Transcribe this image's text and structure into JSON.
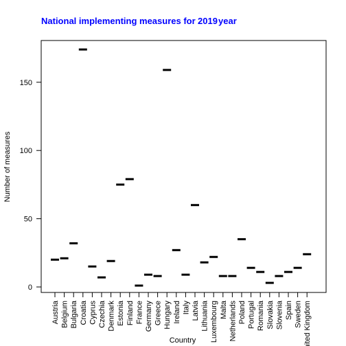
{
  "chart_data": {
    "type": "scatter",
    "marker": "horizontal-bar",
    "title": "National implementing measures for",
    "title_overlay": "2019",
    "title_suffix": "year",
    "title_color": "#0000ff",
    "xlabel": "Country",
    "ylabel": "Number of measures",
    "ylim": [
      -5,
      178
    ],
    "yticks": [
      0,
      50,
      100,
      150
    ],
    "grid": false,
    "legend": "none",
    "marker_color": "#000000",
    "categories": [
      "Austria",
      "Belgium",
      "Bulgaria",
      "Croatia",
      "Cyprus",
      "Czechia",
      "Denmark",
      "Estonia",
      "Finland",
      "France",
      "Germany",
      "Greece",
      "Hungary",
      "Ireland",
      "Italy",
      "Latvia",
      "Lithuania",
      "Luxembourg",
      "Malta",
      "Netherlands",
      "Poland",
      "Portugal",
      "Romania",
      "Slovakia",
      "Slovenia",
      "Spain",
      "Sweden",
      "United Kingdom"
    ],
    "values": [
      20,
      21,
      32,
      174,
      15,
      7,
      19,
      75,
      79,
      1,
      9,
      8,
      159,
      27,
      9,
      60,
      18,
      22,
      8,
      8,
      35,
      14,
      11,
      3,
      8,
      11,
      14,
      24
    ]
  }
}
